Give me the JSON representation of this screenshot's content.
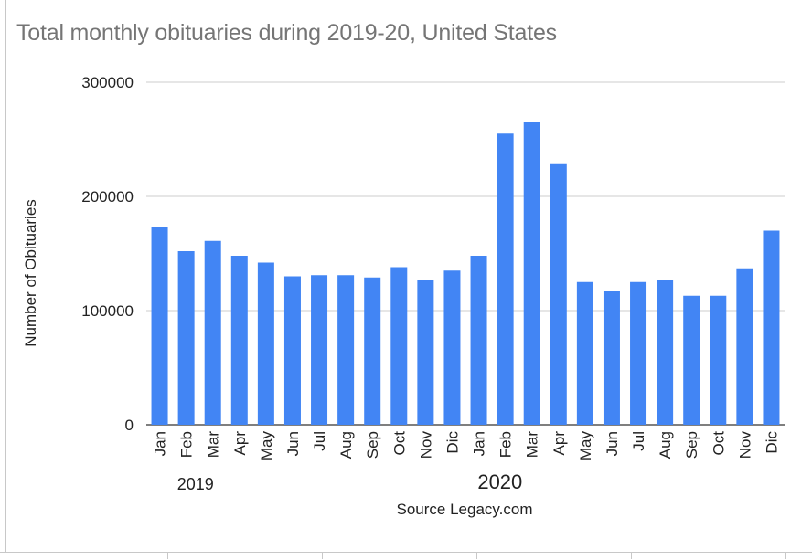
{
  "chart_data": {
    "type": "bar",
    "title": "Total monthly obituaries during 2019-20, United States",
    "ylabel": "Number of Obituaries",
    "xlabel": "Source Legacy.com",
    "ylim": [
      0,
      300000
    ],
    "yticks": [
      "0",
      "100000",
      "200000",
      "300000"
    ],
    "grid": true,
    "years": [
      {
        "label": "2019",
        "start": 0,
        "end": 11
      },
      {
        "label": "2020",
        "start": 12,
        "end": 23
      }
    ],
    "categories": [
      "Jan",
      "Feb",
      "Mar",
      "Apr",
      "May",
      "Jun",
      "Jul",
      "Aug",
      "Sep",
      "Oct",
      "Nov",
      "Dic",
      "Jan",
      "Feb",
      "Mar",
      "Apr",
      "May",
      "Jun",
      "Jul",
      "Aug",
      "Sep",
      "Oct",
      "Nov",
      "Dic"
    ],
    "values": [
      173000,
      152000,
      161000,
      148000,
      142000,
      130000,
      131000,
      131000,
      129000,
      138000,
      127000,
      135000,
      148000,
      255000,
      265000,
      229000,
      125000,
      117000,
      125000,
      127000,
      113000,
      113000,
      137000,
      170000
    ],
    "bar_color": "#4285f4"
  }
}
